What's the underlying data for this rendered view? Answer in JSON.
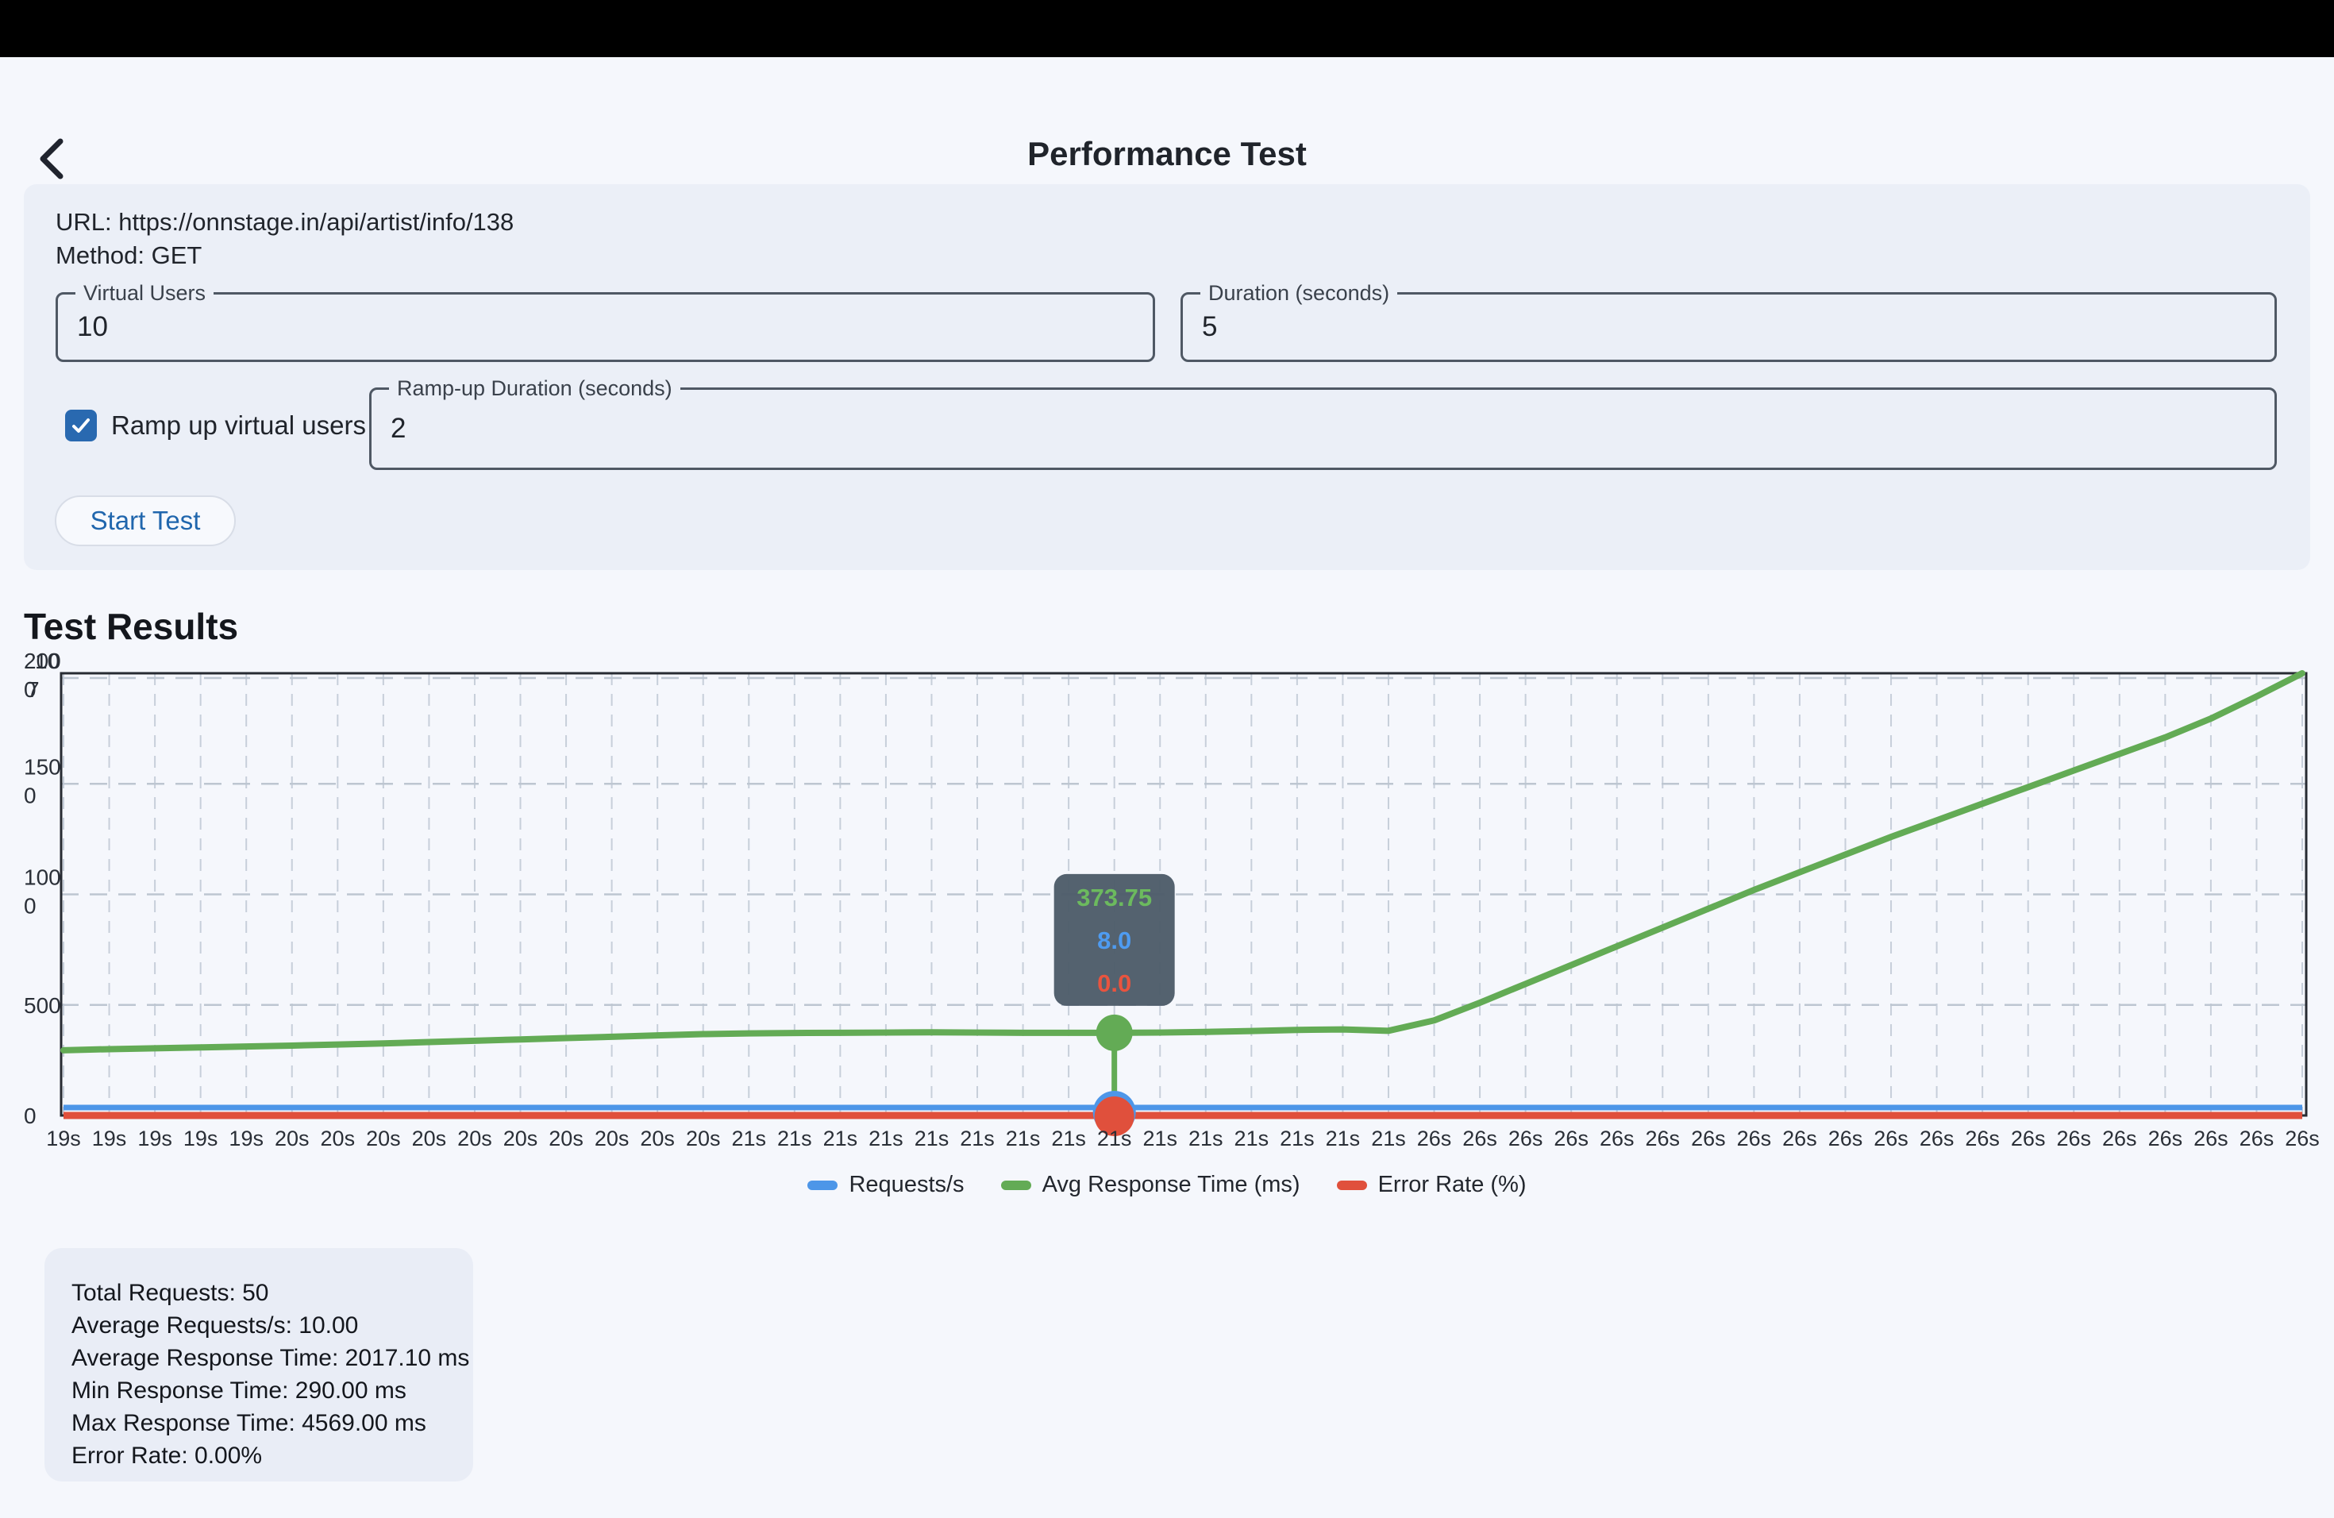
{
  "header": {
    "title": "Performance Test"
  },
  "form": {
    "url_line": "URL: https://onnstage.in/api/artist/info/138",
    "method_line": "Method: GET",
    "fields": {
      "virtual_users": {
        "label": "Virtual Users",
        "value": "10"
      },
      "duration": {
        "label": "Duration (seconds)",
        "value": "5"
      },
      "ramp_up_duration": {
        "label": "Ramp-up Duration (seconds)",
        "value": "2"
      }
    },
    "ramp_checkbox": {
      "label": "Ramp up virtual users",
      "checked": true
    },
    "start_button": "Start Test"
  },
  "results": {
    "heading": "Test Results",
    "summary": [
      "Total Requests: 50",
      "Average Requests/s: 10.00",
      "Average Response Time: 2017.10 ms",
      "Min Response Time: 290.00 ms",
      "Max Response Time: 4569.00 ms",
      "Error Rate: 0.00%"
    ]
  },
  "chart_data": {
    "type": "line",
    "title": "",
    "xlabel": "",
    "ylabel": "",
    "ylim": [
      0,
      2000
    ],
    "grid": true,
    "legend_position": "bottom",
    "x_labels": [
      "19s",
      "19s",
      "19s",
      "19s",
      "19s",
      "20s",
      "20s",
      "20s",
      "20s",
      "20s",
      "20s",
      "20s",
      "20s",
      "20s",
      "20s",
      "21s",
      "21s",
      "21s",
      "21s",
      "21s",
      "21s",
      "21s",
      "21s",
      "21s",
      "21s",
      "21s",
      "21s",
      "21s",
      "21s",
      "21s",
      "26s",
      "26s",
      "26s",
      "26s",
      "26s",
      "26s",
      "26s",
      "26s",
      "26s",
      "26s",
      "26s",
      "26s",
      "26s",
      "26s",
      "26s",
      "26s",
      "26s",
      "26s",
      "26s",
      "26s"
    ],
    "y_ticks": [
      {
        "v": 0,
        "lines": [
          "0"
        ]
      },
      {
        "v": 500,
        "lines": [
          "500"
        ]
      },
      {
        "v": 1000,
        "lines": [
          "100",
          "0"
        ]
      },
      {
        "v": 1500,
        "lines": [
          "150",
          "0"
        ]
      },
      {
        "v": 2000,
        "lines": [
          "200",
          "0"
        ]
      }
    ],
    "y_axis_overlap_artifact": {
      "row1": "10",
      "row2": "7"
    },
    "series": [
      {
        "name": "Requests/s",
        "color": "#4D96E8",
        "values": [
          8,
          8,
          8,
          8,
          8,
          8,
          8,
          8,
          8,
          8,
          8,
          8,
          8,
          8,
          8,
          8,
          8,
          8,
          8,
          8,
          8,
          8,
          8,
          8,
          8,
          8,
          8,
          8,
          8,
          8,
          8,
          8,
          8,
          8,
          8,
          8,
          8,
          8,
          8,
          8,
          8,
          8,
          8,
          8,
          8,
          8,
          8,
          8,
          8,
          8
        ]
      },
      {
        "name": "Avg Response Time (ms)",
        "color": "#63AB55",
        "values": [
          295,
          300,
          304,
          308,
          312,
          316,
          321,
          326,
          332,
          338,
          344,
          350,
          356,
          362,
          368,
          371,
          373,
          374,
          375,
          376,
          375,
          374,
          374,
          373.75,
          375,
          378,
          382,
          387,
          389,
          383,
          430,
          510,
          595,
          680,
          765,
          850,
          935,
          1020,
          1100,
          1180,
          1260,
          1335,
          1410,
          1485,
          1560,
          1635,
          1710,
          1795,
          1895,
          2000
        ]
      },
      {
        "name": "Error Rate (%)",
        "color": "#E0503C",
        "values": [
          0,
          0,
          0,
          0,
          0,
          0,
          0,
          0,
          0,
          0,
          0,
          0,
          0,
          0,
          0,
          0,
          0,
          0,
          0,
          0,
          0,
          0,
          0,
          0,
          0,
          0,
          0,
          0,
          0,
          0,
          0,
          0,
          0,
          0,
          0,
          0,
          0,
          0,
          0,
          0,
          0,
          0,
          0,
          0,
          0,
          0,
          0,
          0,
          0,
          0
        ]
      }
    ],
    "selected_index": 23,
    "tooltip": {
      "values": [
        "373.75",
        "8.0",
        "0.0"
      ],
      "colors": [
        "#6CBA5E",
        "#4E9BF0",
        "#E8543F"
      ],
      "bg": "#4E5D6A"
    }
  }
}
